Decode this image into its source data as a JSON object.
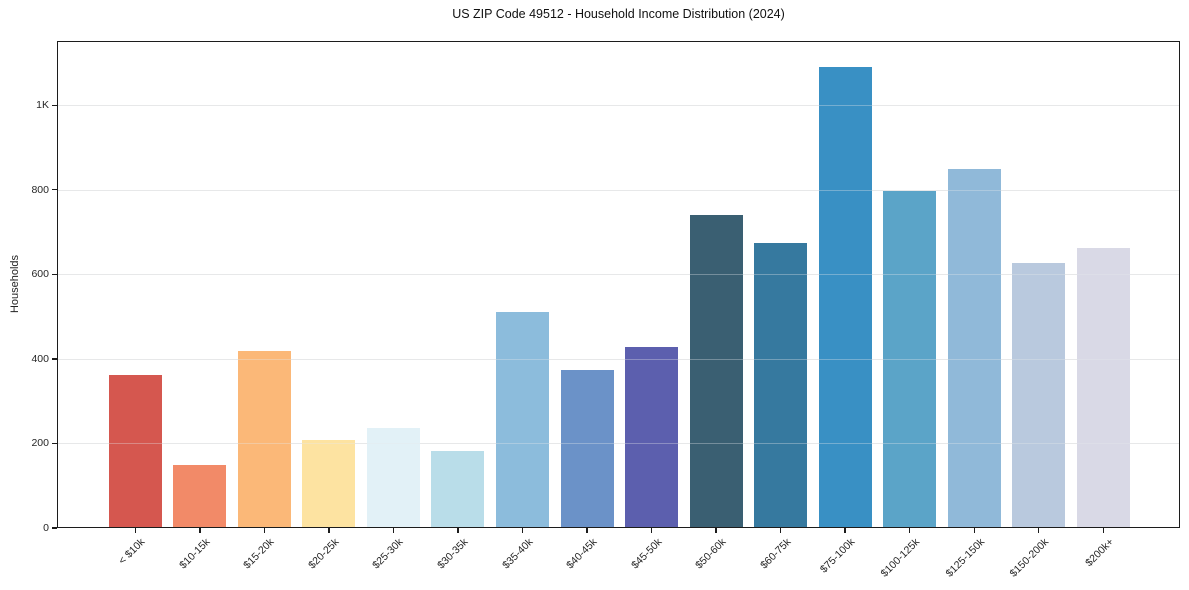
{
  "chart_data": {
    "type": "bar",
    "title": "US ZIP Code 49512 - Household Income Distribution (2024)",
    "xlabel": "",
    "ylabel": "Households",
    "categories": [
      "< $10k",
      "$10-15k",
      "$15-20k",
      "$20-25k",
      "$25-30k",
      "$30-35k",
      "$35-40k",
      "$40-45k",
      "$45-50k",
      "$50-60k",
      "$60-75k",
      "$75-100k",
      "$100-125k",
      "$125-150k",
      "$150-200k",
      "$200k+"
    ],
    "values": [
      362,
      148,
      418,
      207,
      236,
      181,
      511,
      374,
      428,
      740,
      674,
      1090,
      796,
      849,
      627,
      662
    ],
    "bar_colors": [
      "#d5574f",
      "#f28a68",
      "#fbb878",
      "#fde3a1",
      "#e2f1f7",
      "#b9dde9",
      "#8cbcdc",
      "#6b92c8",
      "#5c5fae",
      "#3a5f72",
      "#36799f",
      "#3990c4",
      "#5ba4c8",
      "#90b9d9",
      "#b9c9de",
      "#d9d9e6"
    ],
    "yticks": [
      {
        "value": 0,
        "label": "0"
      },
      {
        "value": 200,
        "label": "200"
      },
      {
        "value": 400,
        "label": "400"
      },
      {
        "value": 600,
        "label": "600"
      },
      {
        "value": 800,
        "label": "800"
      },
      {
        "value": 1000,
        "label": "1K"
      }
    ],
    "ylim": [
      0,
      1152
    ],
    "grid": "horizontal",
    "legend": "none",
    "frame_color": "#1c1c1c",
    "background_color": "#ffffff"
  }
}
